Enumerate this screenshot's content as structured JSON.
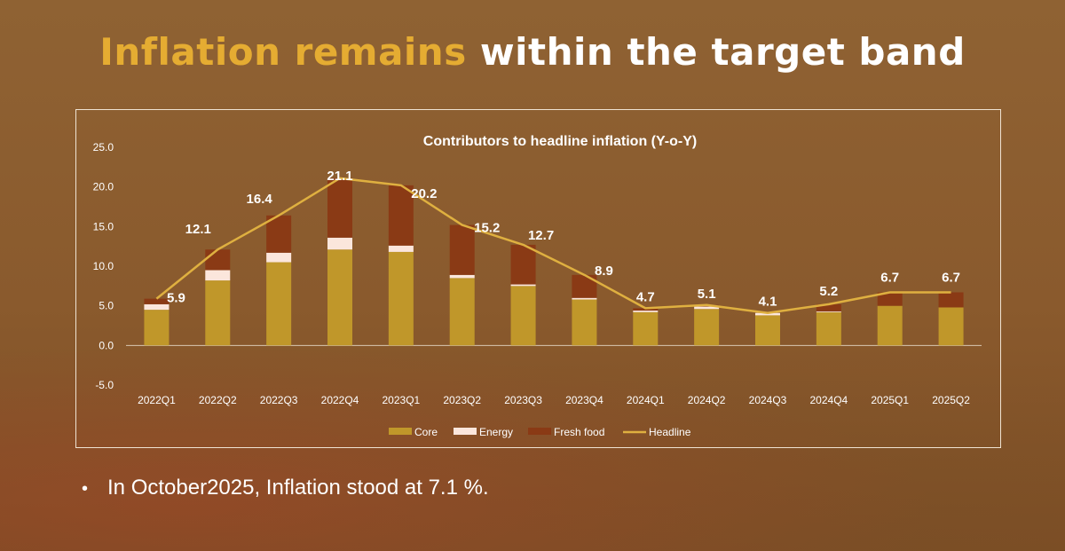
{
  "slide": {
    "title_highlight": "Inflation remains",
    "title_rest": "within the target band",
    "bullet": "In October2025, Inflation stood at 7.1 %."
  },
  "colors": {
    "core": "#c0972a",
    "energy": "#fbe6dc",
    "fresh_food": "#8a3a15",
    "headline": "#dfb040",
    "axis_text": "#ffffff",
    "title_highlight": "#e5ac32"
  },
  "chart_data": {
    "type": "bar",
    "stacked": true,
    "title": "Contributors to headline inflation (Y-o-Y)",
    "categories": [
      "2022Q1",
      "2022Q2",
      "2022Q3",
      "2022Q4",
      "2023Q1",
      "2023Q2",
      "2023Q3",
      "2023Q4",
      "2024Q1",
      "2024Q2",
      "2024Q3",
      "2024Q4",
      "2025Q1",
      "2025Q2"
    ],
    "series": [
      {
        "name": "Core",
        "type": "bar",
        "values": [
          4.5,
          8.2,
          10.5,
          12.1,
          11.8,
          8.5,
          7.5,
          5.8,
          4.2,
          4.6,
          3.8,
          4.2,
          5.0,
          4.8
        ]
      },
      {
        "name": "Energy",
        "type": "bar",
        "values": [
          0.7,
          1.3,
          1.2,
          1.5,
          0.8,
          0.4,
          0.2,
          0.2,
          0.2,
          0.3,
          0.3,
          0.1,
          0.0,
          0.0
        ]
      },
      {
        "name": "Fresh food",
        "type": "bar",
        "values": [
          0.7,
          2.6,
          4.7,
          7.5,
          7.6,
          6.3,
          5.0,
          2.9,
          0.3,
          0.2,
          0.0,
          0.9,
          1.7,
          1.9
        ]
      },
      {
        "name": "Headline",
        "type": "line",
        "values": [
          5.9,
          12.1,
          16.4,
          21.1,
          20.2,
          15.2,
          12.7,
          8.9,
          4.7,
          5.1,
          4.1,
          5.2,
          6.7,
          6.7
        ]
      }
    ],
    "data_labels": [
      "5.9",
      "12.1",
      "16.4",
      "21.1",
      "20.2",
      "15.2",
      "12.7",
      "8.9",
      "4.7",
      "5.1",
      "4.1",
      "5.2",
      "6.7",
      "6.7"
    ],
    "y_ticks": [
      "25.0",
      "20.0",
      "15.0",
      "10.0",
      "5.0",
      "0.0",
      "-5.0"
    ],
    "ylim": [
      -5,
      25
    ],
    "legend": [
      "Core",
      "Energy",
      "Fresh food",
      "Headline"
    ],
    "legend_position": "bottom",
    "xlabel": "",
    "ylabel": ""
  }
}
